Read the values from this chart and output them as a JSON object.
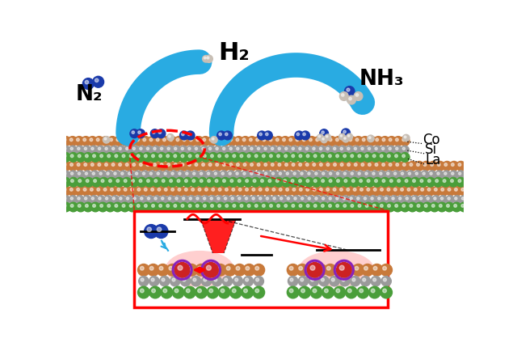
{
  "bg_color": "#ffffff",
  "arrow_color": "#29abe2",
  "N2_label": "N₂",
  "H2_label": "H₂",
  "NH3_label": "NH₃",
  "Co_label": "Co",
  "Si_label": "Si",
  "La_label": "La",
  "co_color": "#c8793a",
  "si_color": "#9a9a9a",
  "la_color": "#4a9e3a",
  "n2_blue": "#1a3aaa",
  "h_color": "#c8bfb5",
  "red_color": "#ff0000"
}
